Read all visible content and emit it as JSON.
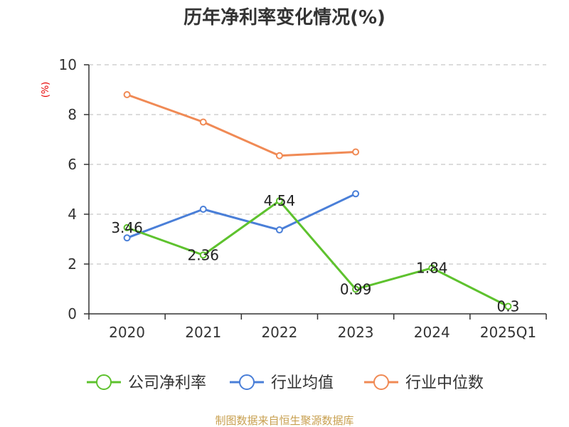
{
  "chart_data": {
    "type": "line",
    "title": "历年净利率变化情况(%)",
    "ylabel": "(%)",
    "xlabel": "",
    "categories": [
      "2020",
      "2021",
      "2022",
      "2023",
      "2024",
      "2025Q1"
    ],
    "ylim": [
      0,
      10
    ],
    "yticks": [
      0,
      2,
      4,
      6,
      8,
      10
    ],
    "grid": true,
    "legend_position": "bottom",
    "series": [
      {
        "name": "公司净利率",
        "color": "#5ec22e",
        "values": [
          3.46,
          2.36,
          4.54,
          0.99,
          1.84,
          0.3
        ],
        "labels": [
          "3.46",
          "2.36",
          "4.54",
          "0.99",
          "1.84",
          "0.3"
        ]
      },
      {
        "name": "行业均值",
        "color": "#4a7fd8",
        "values": [
          3.05,
          4.2,
          3.37,
          4.82,
          null,
          null
        ]
      },
      {
        "name": "行业中位数",
        "color": "#f08a55",
        "values": [
          8.8,
          7.7,
          6.35,
          6.5,
          null,
          null
        ]
      }
    ]
  },
  "source_note": "制图数据来自恒生聚源数据库"
}
